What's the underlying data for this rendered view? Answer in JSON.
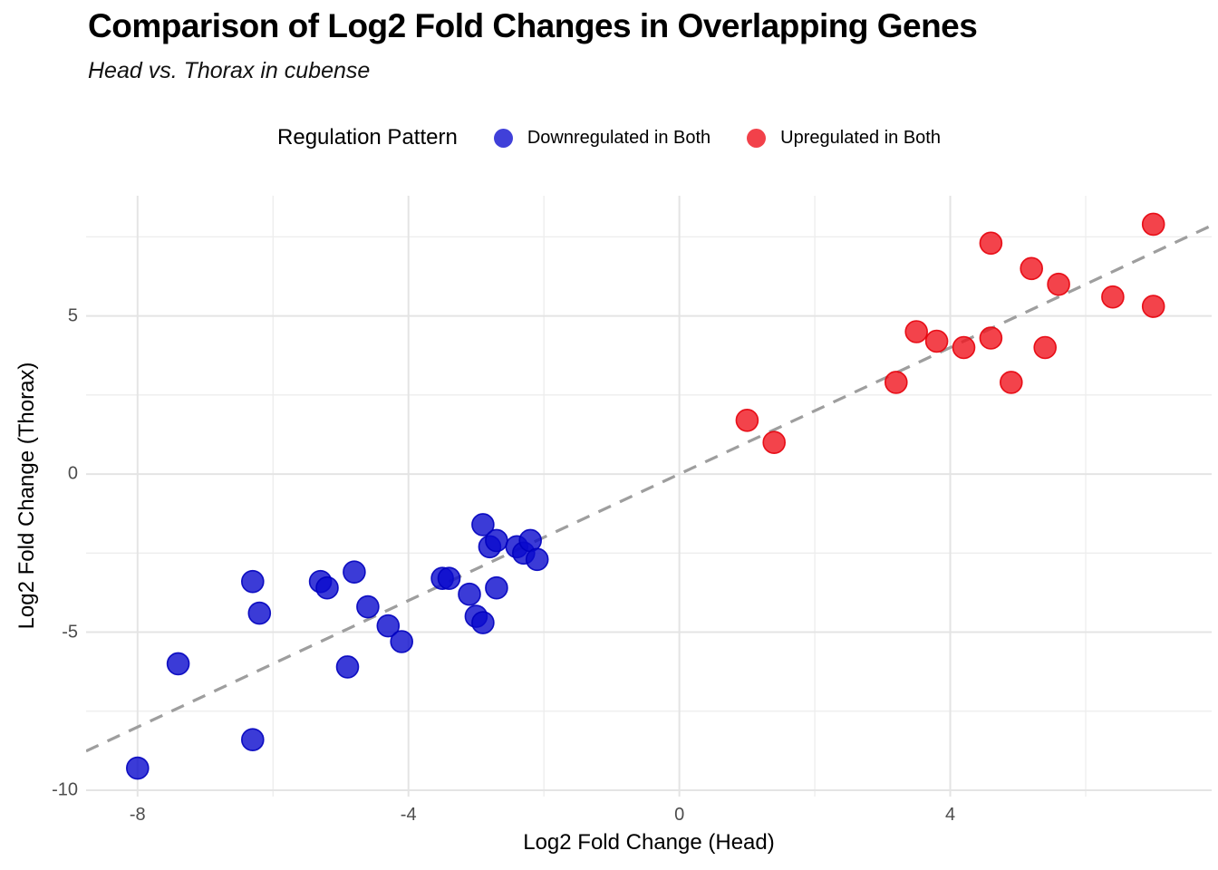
{
  "title": "Comparison of Log2 Fold Changes in Overlapping Genes",
  "subtitle": "Head vs. Thorax in cubense",
  "legend": {
    "title": "Regulation Pattern",
    "items": [
      {
        "label": "Downregulated in Both",
        "color": "#4040d9"
      },
      {
        "label": "Upregulated in Both",
        "color": "#f2414a"
      }
    ]
  },
  "chart_data": {
    "type": "scatter",
    "title": "Comparison of Log2 Fold Changes in Overlapping Genes",
    "subtitle": "Head vs. Thorax in cubense",
    "xlabel": "Log2 Fold Change (Head)",
    "ylabel": "Log2 Fold Change (Thorax)",
    "xlim": [
      -8.76,
      7.86
    ],
    "ylim": [
      -10.2,
      8.8
    ],
    "x_major_ticks": [
      -8,
      -4,
      0,
      4
    ],
    "x_minor_ticks": [
      -6,
      -2,
      2,
      6
    ],
    "y_major_ticks": [
      -10,
      -5,
      0,
      5
    ],
    "y_minor_ticks": [
      -7.5,
      -2.5,
      2.5,
      7.5
    ],
    "grid": true,
    "legend_position": "top",
    "reference_line": {
      "type": "identity",
      "style": "dashed",
      "color": "#9e9e9e",
      "from": [
        -8.76,
        -8.76
      ],
      "to": [
        7.86,
        7.86
      ]
    },
    "series": [
      {
        "name": "Downregulated in Both",
        "fill": "rgba(10,10,205,0.8)",
        "stroke": "rgba(0,0,190,0.9)",
        "points": [
          [
            -8.0,
            -9.3
          ],
          [
            -7.4,
            -6.0
          ],
          [
            -6.3,
            -8.4
          ],
          [
            -6.3,
            -3.4
          ],
          [
            -6.2,
            -4.4
          ],
          [
            -5.3,
            -3.4
          ],
          [
            -5.2,
            -3.6
          ],
          [
            -4.9,
            -6.1
          ],
          [
            -4.8,
            -3.1
          ],
          [
            -4.6,
            -4.2
          ],
          [
            -4.3,
            -4.8
          ],
          [
            -4.1,
            -5.3
          ],
          [
            -3.5,
            -3.3
          ],
          [
            -3.4,
            -3.3
          ],
          [
            -3.1,
            -3.8
          ],
          [
            -3.0,
            -4.5
          ],
          [
            -2.9,
            -4.7
          ],
          [
            -2.9,
            -1.6
          ],
          [
            -2.8,
            -2.3
          ],
          [
            -2.7,
            -2.1
          ],
          [
            -2.7,
            -3.6
          ],
          [
            -2.4,
            -2.3
          ],
          [
            -2.3,
            -2.5
          ],
          [
            -2.2,
            -2.1
          ],
          [
            -2.1,
            -2.7
          ]
        ]
      },
      {
        "name": "Upregulated in Both",
        "fill": "rgba(240,20,30,0.8)",
        "stroke": "rgba(230,0,10,0.9)",
        "points": [
          [
            1.0,
            1.7
          ],
          [
            1.4,
            1.0
          ],
          [
            3.2,
            2.9
          ],
          [
            3.5,
            4.5
          ],
          [
            3.8,
            4.2
          ],
          [
            4.2,
            4.0
          ],
          [
            4.6,
            4.3
          ],
          [
            4.6,
            7.3
          ],
          [
            4.9,
            2.9
          ],
          [
            5.2,
            6.5
          ],
          [
            5.4,
            4.0
          ],
          [
            5.6,
            6.0
          ],
          [
            6.4,
            5.6
          ],
          [
            7.0,
            7.9
          ],
          [
            7.0,
            5.3
          ]
        ]
      }
    ]
  }
}
